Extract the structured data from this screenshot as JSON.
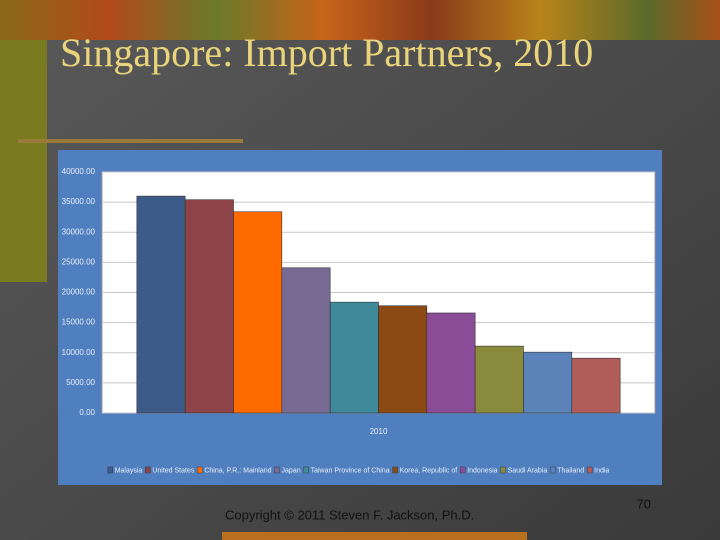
{
  "chart_data": {
    "type": "bar",
    "title": "Singapore: Import Partners, 2010",
    "categories": [
      "2010"
    ],
    "series": [
      {
        "name": "Malaysia",
        "color": "#3d5b88",
        "values": [
          36000
        ]
      },
      {
        "name": "United States",
        "color": "#8c4448",
        "values": [
          35400
        ]
      },
      {
        "name": "China, P.R.: Mainland",
        "color": "#ff6a00",
        "values": [
          33400
        ]
      },
      {
        "name": "Japan",
        "color": "#776b93",
        "values": [
          24100
        ]
      },
      {
        "name": "Taiwan Province of China",
        "color": "#3e8a9a",
        "values": [
          18400
        ]
      },
      {
        "name": "Korea, Republic of",
        "color": "#8b4a14",
        "values": [
          17800
        ]
      },
      {
        "name": "Indonesia",
        "color": "#8a4b97",
        "values": [
          16600
        ]
      },
      {
        "name": "Saudi Arabia",
        "color": "#8a8a3c",
        "values": [
          11100
        ]
      },
      {
        "name": "Thailand",
        "color": "#5b83b9",
        "values": [
          10100
        ]
      },
      {
        "name": "India",
        "color": "#b05c5b",
        "values": [
          9100
        ]
      }
    ],
    "ylim": [
      0,
      40000
    ],
    "yticks": [
      {
        "value": 0,
        "label": "0.00"
      },
      {
        "value": 5000,
        "label": "5000.00"
      },
      {
        "value": 10000,
        "label": "10000.00"
      },
      {
        "value": 15000,
        "label": "15000.00"
      },
      {
        "value": 20000,
        "label": "20000.00"
      },
      {
        "value": 25000,
        "label": "25000.00"
      },
      {
        "value": 30000,
        "label": "30000.00"
      },
      {
        "value": 35000,
        "label": "35000.00"
      },
      {
        "value": 40000,
        "label": "40000.00"
      }
    ],
    "grid": true
  },
  "footer": {
    "copyright": "Copyright © 2011 Steven F. Jackson, Ph.D.",
    "page_number": "70"
  }
}
